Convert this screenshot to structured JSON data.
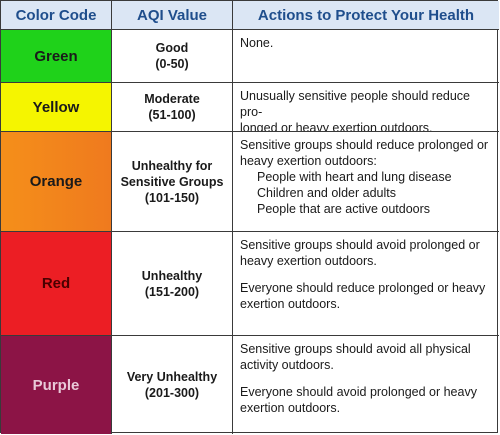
{
  "headers": {
    "color_code": "Color Code",
    "aqi_value": "AQI Value",
    "actions": "Actions to Protect Your Health"
  },
  "rows": [
    {
      "color": "Green",
      "color_hex": "#1fd21a",
      "category": "Good",
      "range": "(0-50)",
      "actions": [
        "None."
      ]
    },
    {
      "color": "Yellow",
      "color_hex": "#f5f500",
      "category": "Moderate",
      "range": "(51-100)",
      "actions": [
        "Unusually sensitive people should reduce pro-longed or heavy exertion outdoors."
      ],
      "actions_lines": [
        "Unusually sensitive people should reduce pro-",
        "longed or heavy exertion outdoors."
      ]
    },
    {
      "color": "Orange",
      "color_hex": "#f58f1a",
      "category_line1": "Unhealthy for",
      "category_line2": "Sensitive Groups",
      "range": "(101-150)",
      "intro_line1": "Sensitive groups should reduce prolonged or",
      "intro_line2": "heavy exertion outdoors:",
      "items": [
        "People with heart and lung disease",
        "Children and older adults",
        "People that are active outdoors"
      ]
    },
    {
      "color": "Red",
      "color_hex": "#ec1e24",
      "category": "Unhealthy",
      "range": "(151-200)",
      "p1_line1": "Sensitive groups should avoid prolonged or",
      "p1_line2": "heavy exertion outdoors.",
      "p2_line1": "Everyone should reduce prolonged or heavy",
      "p2_line2": "exertion outdoors."
    },
    {
      "color": "Purple",
      "color_hex": "#8c1446",
      "category": "Very Unhealthy",
      "range": "(201-300)",
      "p1_line1": "Sensitive groups should avoid all physical",
      "p1_line2": "activity outdoors.",
      "p2_line1": "Everyone should avoid prolonged or heavy",
      "p2_line2": "exertion outdoors."
    }
  ]
}
